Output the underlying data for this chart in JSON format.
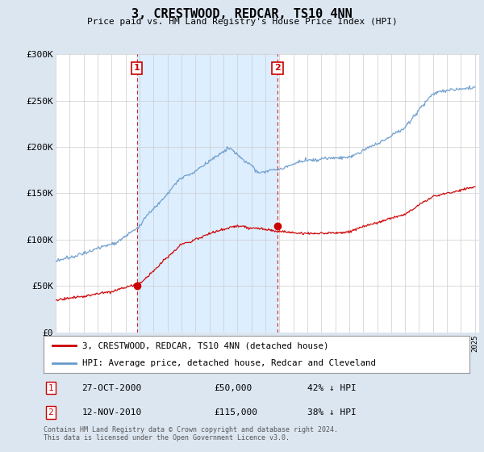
{
  "title": "3, CRESTWOOD, REDCAR, TS10 4NN",
  "subtitle": "Price paid vs. HM Land Registry's House Price Index (HPI)",
  "y_min": 0,
  "y_max": 300000,
  "y_ticks": [
    0,
    50000,
    100000,
    150000,
    200000,
    250000,
    300000
  ],
  "y_tick_labels": [
    "£0",
    "£50K",
    "£100K",
    "£150K",
    "£200K",
    "£250K",
    "£300K"
  ],
  "transaction1_year": 2000.82,
  "transaction1_value": 50000,
  "transaction2_year": 2010.87,
  "transaction2_value": 115000,
  "transaction1_date": "27-OCT-2000",
  "transaction1_pct": "42% ↓ HPI",
  "transaction2_date": "12-NOV-2010",
  "transaction2_pct": "38% ↓ HPI",
  "line1_color": "#cc0000",
  "line2_color": "#6699cc",
  "shade_color": "#ddeeff",
  "background_color": "#dce6f1",
  "plot_bg_color": "#ffffff",
  "grid_color": "#cccccc",
  "legend1_label": "3, CRESTWOOD, REDCAR, TS10 4NN (detached house)",
  "legend2_label": "HPI: Average price, detached house, Redcar and Cleveland",
  "footer": "Contains HM Land Registry data © Crown copyright and database right 2024.\nThis data is licensed under the Open Government Licence v3.0."
}
